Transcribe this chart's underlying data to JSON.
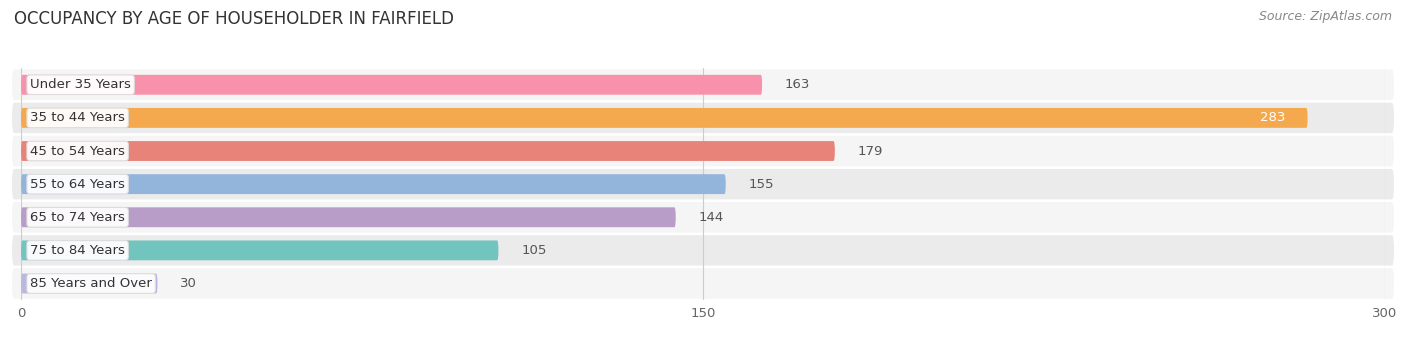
{
  "title": "OCCUPANCY BY AGE OF HOUSEHOLDER IN FAIRFIELD",
  "source": "Source: ZipAtlas.com",
  "categories": [
    "Under 35 Years",
    "35 to 44 Years",
    "45 to 54 Years",
    "55 to 64 Years",
    "65 to 74 Years",
    "75 to 84 Years",
    "85 Years and Over"
  ],
  "values": [
    163,
    283,
    179,
    155,
    144,
    105,
    30
  ],
  "bar_colors": [
    "#F892AC",
    "#F5A94E",
    "#E8837A",
    "#93B5DC",
    "#B89DC8",
    "#72C4BE",
    "#B8B8E0"
  ],
  "xlim": [
    0,
    300
  ],
  "xticks": [
    0,
    150,
    300
  ],
  "title_fontsize": 12,
  "source_fontsize": 9,
  "label_fontsize": 9.5,
  "value_fontsize": 9.5,
  "background_color": "#FFFFFF",
  "bar_height": 0.6,
  "row_bg_colors": [
    "#F5F5F5",
    "#EBEBEB"
  ]
}
